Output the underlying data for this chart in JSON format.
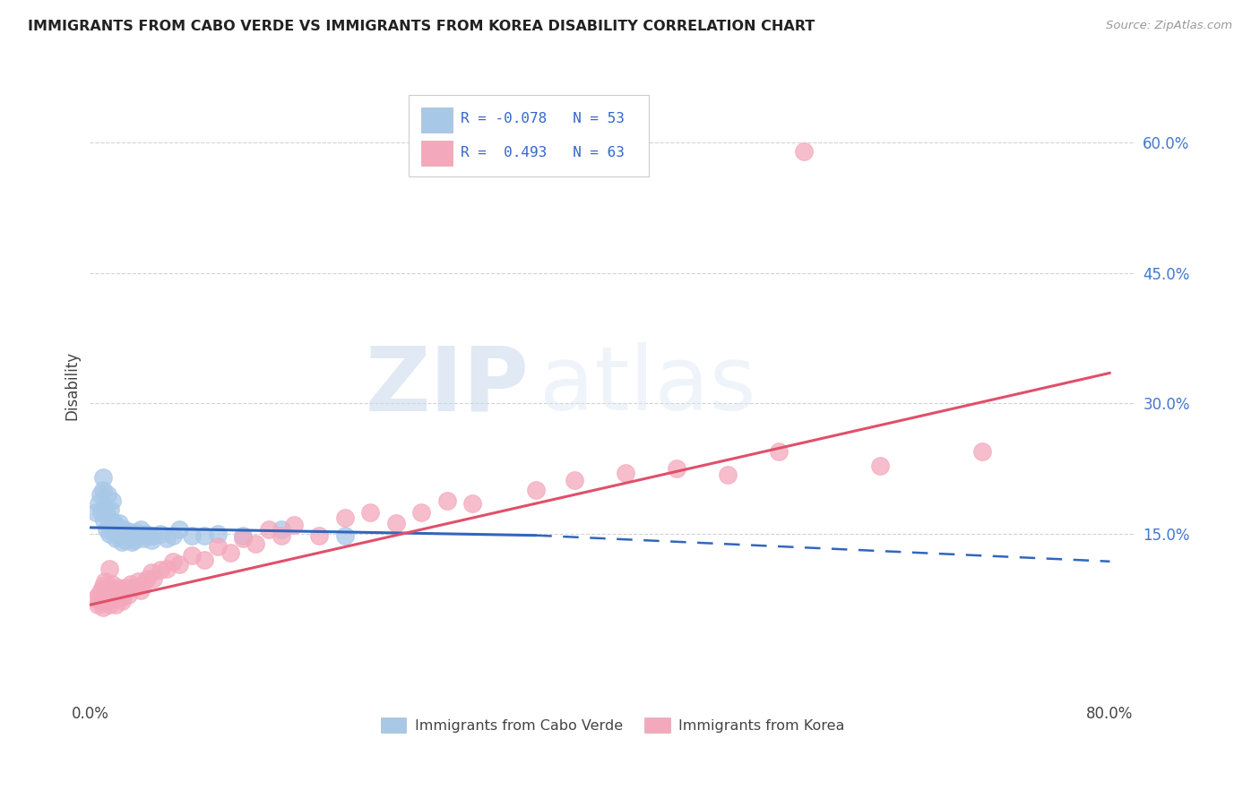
{
  "title": "IMMIGRANTS FROM CABO VERDE VS IMMIGRANTS FROM KOREA DISABILITY CORRELATION CHART",
  "source": "Source: ZipAtlas.com",
  "ylabel": "Disability",
  "xlim": [
    0.0,
    0.82
  ],
  "ylim": [
    -0.04,
    0.68
  ],
  "yticks": [
    0.15,
    0.3,
    0.45,
    0.6
  ],
  "ytick_labels": [
    "15.0%",
    "30.0%",
    "45.0%",
    "60.0%"
  ],
  "xtick_positions": [
    0.0,
    0.8
  ],
  "xtick_labels": [
    "0.0%",
    "80.0%"
  ],
  "legend_R_blue": "-0.078",
  "legend_N_blue": "53",
  "legend_R_pink": "0.493",
  "legend_N_pink": "63",
  "blue_scatter_color": "#a8c8e8",
  "pink_scatter_color": "#f4a8bc",
  "blue_line_color": "#3366bb",
  "pink_line_color": "#e0506a",
  "watermark_zip": "ZIP",
  "watermark_atlas": "atlas",
  "background_color": "#ffffff",
  "grid_color": "#c8c8c8",
  "cabo_verde_x": [
    0.005,
    0.007,
    0.008,
    0.009,
    0.01,
    0.01,
    0.011,
    0.012,
    0.013,
    0.014,
    0.014,
    0.015,
    0.015,
    0.016,
    0.017,
    0.018,
    0.019,
    0.02,
    0.02,
    0.021,
    0.022,
    0.023,
    0.024,
    0.025,
    0.025,
    0.026,
    0.027,
    0.028,
    0.029,
    0.03,
    0.031,
    0.032,
    0.033,
    0.034,
    0.035,
    0.036,
    0.038,
    0.04,
    0.042,
    0.044,
    0.046,
    0.048,
    0.05,
    0.055,
    0.06,
    0.065,
    0.07,
    0.08,
    0.09,
    0.1,
    0.12,
    0.15,
    0.2
  ],
  "cabo_verde_y": [
    0.175,
    0.185,
    0.195,
    0.175,
    0.2,
    0.215,
    0.165,
    0.18,
    0.155,
    0.17,
    0.195,
    0.15,
    0.165,
    0.178,
    0.188,
    0.155,
    0.163,
    0.145,
    0.16,
    0.155,
    0.148,
    0.162,
    0.152,
    0.14,
    0.155,
    0.148,
    0.155,
    0.143,
    0.15,
    0.148,
    0.145,
    0.152,
    0.14,
    0.148,
    0.143,
    0.152,
    0.148,
    0.155,
    0.145,
    0.15,
    0.148,
    0.143,
    0.148,
    0.15,
    0.145,
    0.148,
    0.155,
    0.148,
    0.148,
    0.15,
    0.148,
    0.155,
    0.148
  ],
  "korea_x": [
    0.005,
    0.006,
    0.007,
    0.008,
    0.009,
    0.01,
    0.01,
    0.011,
    0.012,
    0.013,
    0.014,
    0.015,
    0.015,
    0.016,
    0.017,
    0.018,
    0.019,
    0.02,
    0.021,
    0.022,
    0.023,
    0.024,
    0.025,
    0.026,
    0.028,
    0.03,
    0.032,
    0.035,
    0.038,
    0.04,
    0.042,
    0.045,
    0.048,
    0.05,
    0.055,
    0.06,
    0.065,
    0.07,
    0.08,
    0.09,
    0.1,
    0.11,
    0.12,
    0.13,
    0.14,
    0.15,
    0.16,
    0.18,
    0.2,
    0.22,
    0.24,
    0.26,
    0.28,
    0.3,
    0.35,
    0.38,
    0.42,
    0.46,
    0.5,
    0.54,
    0.56,
    0.62,
    0.7
  ],
  "korea_y": [
    0.075,
    0.068,
    0.08,
    0.072,
    0.085,
    0.065,
    0.09,
    0.078,
    0.095,
    0.072,
    0.088,
    0.068,
    0.11,
    0.082,
    0.092,
    0.075,
    0.085,
    0.068,
    0.078,
    0.088,
    0.078,
    0.085,
    0.072,
    0.078,
    0.088,
    0.08,
    0.092,
    0.088,
    0.095,
    0.085,
    0.092,
    0.098,
    0.105,
    0.098,
    0.108,
    0.11,
    0.118,
    0.115,
    0.125,
    0.12,
    0.135,
    0.128,
    0.145,
    0.138,
    0.155,
    0.148,
    0.16,
    0.148,
    0.168,
    0.175,
    0.162,
    0.175,
    0.188,
    0.185,
    0.2,
    0.212,
    0.22,
    0.225,
    0.218,
    0.245,
    0.59,
    0.228,
    0.245
  ],
  "blue_line_x0": 0.0,
  "blue_line_y0": 0.157,
  "blue_line_x1": 0.35,
  "blue_line_y1": 0.148,
  "blue_line_x2": 0.8,
  "blue_line_y2": 0.118,
  "pink_line_x0": 0.0,
  "pink_line_y0": 0.068,
  "pink_line_x1": 0.8,
  "pink_line_y1": 0.335
}
